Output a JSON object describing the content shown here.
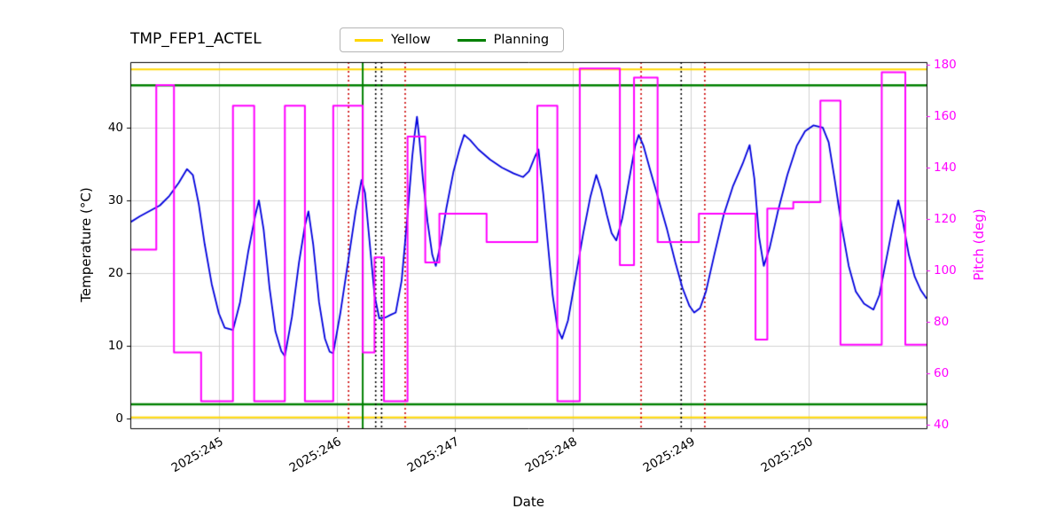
{
  "chart_data": {
    "type": "line",
    "title": "TMP_FEP1_ACTEL",
    "xlabel": "Date",
    "ylabel_left": "Temperature (°C)",
    "ylabel_right": "Pitch (deg)",
    "x_range": [
      244.25,
      251.0
    ],
    "temp_range": [
      -1.3,
      49.0
    ],
    "pitch_range": [
      38.5,
      181.0
    ],
    "grid": true,
    "legend_position": "upper center",
    "x_ticks": [
      {
        "value": 245,
        "label": "2025:245"
      },
      {
        "value": 246,
        "label": "2025:246"
      },
      {
        "value": 247,
        "label": "2025:247"
      },
      {
        "value": 248,
        "label": "2025:248"
      },
      {
        "value": 249,
        "label": "2025:249"
      },
      {
        "value": 250,
        "label": "2025:250"
      }
    ],
    "temp_ticks": [
      0,
      10,
      20,
      30,
      40
    ],
    "pitch_ticks": [
      40,
      60,
      80,
      100,
      120,
      140,
      160,
      180
    ],
    "legend": [
      {
        "label": "Yellow",
        "color": "#ffd700"
      },
      {
        "label": "Planning",
        "color": "#008000"
      }
    ],
    "hlines": [
      {
        "axis": "temp",
        "value": 48.0,
        "color": "#ffd700",
        "width": 2
      },
      {
        "axis": "temp",
        "value": 0.2,
        "color": "#ffd700",
        "width": 2
      },
      {
        "axis": "temp",
        "value": 45.8,
        "color": "#008000",
        "width": 2.5
      },
      {
        "axis": "temp",
        "value": 2.0,
        "color": "#008000",
        "width": 2.5
      }
    ],
    "vlines": [
      {
        "x": 246.1,
        "color": "#cc0000",
        "style": "dotted"
      },
      {
        "x": 246.22,
        "color": "#008000",
        "style": "solid"
      },
      {
        "x": 246.33,
        "color": "#000000",
        "style": "dotted"
      },
      {
        "x": 246.38,
        "color": "#000000",
        "style": "dotted"
      },
      {
        "x": 246.58,
        "color": "#cc0000",
        "style": "dotted"
      },
      {
        "x": 248.58,
        "color": "#cc0000",
        "style": "dotted"
      },
      {
        "x": 248.92,
        "color": "#000000",
        "style": "dotted"
      },
      {
        "x": 249.12,
        "color": "#cc0000",
        "style": "dotted"
      }
    ],
    "series": [
      {
        "name": "temperature",
        "axis": "temp",
        "draw": "line",
        "color": "#0000dd",
        "points": [
          [
            244.25,
            27
          ],
          [
            244.33,
            27.8
          ],
          [
            244.42,
            28.6
          ],
          [
            244.5,
            29.3
          ],
          [
            244.58,
            30.6
          ],
          [
            244.66,
            32.4
          ],
          [
            244.73,
            34.3
          ],
          [
            244.78,
            33.5
          ],
          [
            244.83,
            29.5
          ],
          [
            244.88,
            24
          ],
          [
            244.94,
            18.5
          ],
          [
            245,
            14.5
          ],
          [
            245.05,
            12.5
          ],
          [
            245.12,
            12.2
          ],
          [
            245.18,
            16
          ],
          [
            245.25,
            23
          ],
          [
            245.31,
            28
          ],
          [
            245.34,
            30
          ],
          [
            245.38,
            26
          ],
          [
            245.43,
            18
          ],
          [
            245.48,
            12
          ],
          [
            245.53,
            9.3
          ],
          [
            245.56,
            8.6
          ],
          [
            245.62,
            14
          ],
          [
            245.68,
            21.5
          ],
          [
            245.73,
            26.5
          ],
          [
            245.76,
            28.5
          ],
          [
            245.8,
            24
          ],
          [
            245.85,
            16
          ],
          [
            245.9,
            11
          ],
          [
            245.94,
            9.2
          ],
          [
            245.97,
            9
          ],
          [
            246.03,
            14.5
          ],
          [
            246.1,
            22
          ],
          [
            246.16,
            28.5
          ],
          [
            246.21,
            32.8
          ],
          [
            246.24,
            31
          ],
          [
            246.28,
            24
          ],
          [
            246.32,
            17
          ],
          [
            246.36,
            13.8
          ],
          [
            246.41,
            13.9
          ],
          [
            246.46,
            14.3
          ],
          [
            246.5,
            14.6
          ],
          [
            246.55,
            19
          ],
          [
            246.6,
            28
          ],
          [
            246.64,
            36
          ],
          [
            246.66,
            39
          ],
          [
            246.68,
            41.5
          ],
          [
            246.7,
            38.5
          ],
          [
            246.73,
            33
          ],
          [
            246.77,
            27
          ],
          [
            246.81,
            22.5
          ],
          [
            246.84,
            21
          ],
          [
            246.88,
            24
          ],
          [
            246.93,
            29
          ],
          [
            246.99,
            34
          ],
          [
            247.04,
            37
          ],
          [
            247.08,
            39
          ],
          [
            247.13,
            38.3
          ],
          [
            247.2,
            37
          ],
          [
            247.3,
            35.6
          ],
          [
            247.4,
            34.5
          ],
          [
            247.5,
            33.7
          ],
          [
            247.58,
            33.2
          ],
          [
            247.63,
            34
          ],
          [
            247.68,
            36
          ],
          [
            247.71,
            37
          ],
          [
            247.75,
            31
          ],
          [
            247.79,
            24
          ],
          [
            247.83,
            17
          ],
          [
            247.87,
            12.5
          ],
          [
            247.91,
            11
          ],
          [
            247.96,
            13.5
          ],
          [
            248.02,
            19
          ],
          [
            248.09,
            25.5
          ],
          [
            248.15,
            30.5
          ],
          [
            248.2,
            33.5
          ],
          [
            248.24,
            31.5
          ],
          [
            248.29,
            28
          ],
          [
            248.33,
            25.5
          ],
          [
            248.37,
            24.5
          ],
          [
            248.42,
            27.5
          ],
          [
            248.48,
            33
          ],
          [
            248.53,
            37.5
          ],
          [
            248.56,
            39
          ],
          [
            248.6,
            37.5
          ],
          [
            248.66,
            34
          ],
          [
            248.73,
            30
          ],
          [
            248.8,
            26
          ],
          [
            248.87,
            21.5
          ],
          [
            248.93,
            18
          ],
          [
            248.99,
            15.5
          ],
          [
            249.03,
            14.6
          ],
          [
            249.08,
            15.2
          ],
          [
            249.13,
            17.5
          ],
          [
            249.2,
            22.5
          ],
          [
            249.28,
            28
          ],
          [
            249.36,
            32
          ],
          [
            249.44,
            35
          ],
          [
            249.5,
            37.6
          ],
          [
            249.54,
            33
          ],
          [
            249.58,
            25
          ],
          [
            249.62,
            21
          ],
          [
            249.67,
            23.5
          ],
          [
            249.74,
            28.5
          ],
          [
            249.82,
            33.5
          ],
          [
            249.9,
            37.5
          ],
          [
            249.97,
            39.5
          ],
          [
            250.04,
            40.3
          ],
          [
            250.12,
            40
          ],
          [
            250.17,
            38
          ],
          [
            250.22,
            33
          ],
          [
            250.28,
            26.5
          ],
          [
            250.34,
            21
          ],
          [
            250.4,
            17.5
          ],
          [
            250.47,
            15.8
          ],
          [
            250.55,
            15
          ],
          [
            250.6,
            17
          ],
          [
            250.66,
            22
          ],
          [
            250.72,
            27
          ],
          [
            250.76,
            30
          ],
          [
            250.8,
            27
          ],
          [
            250.85,
            22.5
          ],
          [
            250.9,
            19.5
          ],
          [
            250.95,
            17.7
          ],
          [
            251,
            16.5
          ]
        ]
      },
      {
        "name": "pitch",
        "axis": "pitch",
        "draw": "step",
        "color": "#ff00ff",
        "points": [
          [
            244.25,
            108
          ],
          [
            244.47,
            172
          ],
          [
            244.62,
            68
          ],
          [
            244.85,
            49
          ],
          [
            245.12,
            164
          ],
          [
            245.3,
            49
          ],
          [
            245.56,
            164
          ],
          [
            245.73,
            49
          ],
          [
            245.97,
            164
          ],
          [
            246.22,
            68
          ],
          [
            246.32,
            105
          ],
          [
            246.4,
            49
          ],
          [
            246.6,
            152
          ],
          [
            246.75,
            103
          ],
          [
            246.87,
            122
          ],
          [
            247.27,
            111
          ],
          [
            247.7,
            164
          ],
          [
            247.87,
            49
          ],
          [
            248.06,
            178.5
          ],
          [
            248.4,
            102
          ],
          [
            248.52,
            175
          ],
          [
            248.72,
            111
          ],
          [
            249.07,
            122
          ],
          [
            249.55,
            73
          ],
          [
            249.65,
            124
          ],
          [
            249.87,
            126.5
          ],
          [
            250.1,
            166
          ],
          [
            250.27,
            71
          ],
          [
            250.62,
            177
          ],
          [
            250.82,
            71
          ]
        ]
      }
    ]
  }
}
